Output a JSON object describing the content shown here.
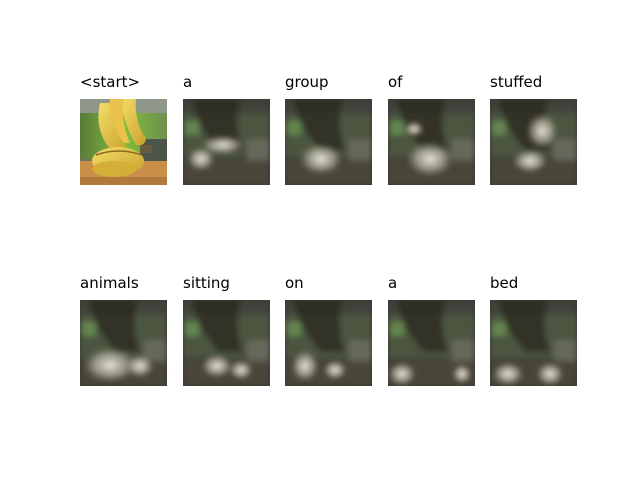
{
  "words": [
    "<start>",
    "a",
    "group",
    "of",
    "stuffed",
    "animals",
    "sitting",
    "on",
    "a",
    "bed"
  ],
  "icons": {
    "photo": "banana-photo",
    "attention": "attention-heatmap-overlay"
  },
  "colors": {
    "banana_yellow": "#e8c94a",
    "wall_green": "#7fbf3a",
    "table_wood": "#c98f4a",
    "dark_overlay": "#2e2c24",
    "highlight": "#f2efe4"
  }
}
